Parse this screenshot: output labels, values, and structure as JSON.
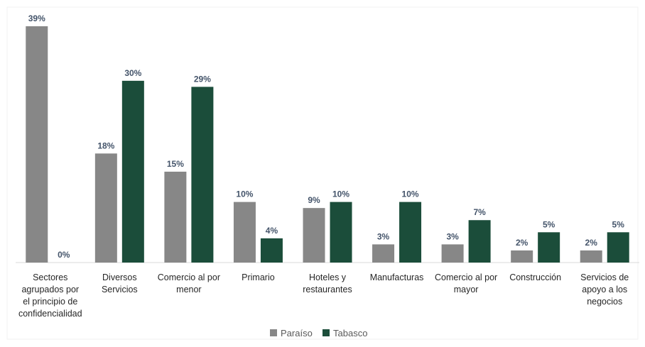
{
  "chart_data": {
    "type": "bar",
    "title": "",
    "xlabel": "",
    "ylabel": "",
    "ylim": [
      0,
      39
    ],
    "grid": false,
    "legend_position": "bottom-center",
    "categories": [
      [
        "Sectores",
        "agrupados por",
        "el principio de",
        "confidencialidad"
      ],
      [
        "Diversos",
        "Servicios"
      ],
      [
        "Comercio al por",
        "menor"
      ],
      [
        "Primario"
      ],
      [
        "Hoteles y",
        "restaurantes"
      ],
      [
        "Manufacturas"
      ],
      [
        "Comercio al por",
        "mayor"
      ],
      [
        "Construcción"
      ],
      [
        "Servicios de",
        "apoyo a los",
        "negocios"
      ]
    ],
    "series": [
      {
        "name": "Paraíso",
        "color": "#878787",
        "values": [
          39,
          18,
          15,
          10,
          9,
          3,
          3,
          2,
          2
        ],
        "labels": [
          "39%",
          "18%",
          "15%",
          "10%",
          "9%",
          "3%",
          "3%",
          "2%",
          "2%"
        ]
      },
      {
        "name": "Tabasco",
        "color": "#1b4d3a",
        "values": [
          0,
          30,
          29,
          4,
          10,
          10,
          7,
          5,
          5
        ],
        "labels": [
          "0%",
          "30%",
          "29%",
          "4%",
          "10%",
          "10%",
          "7%",
          "5%",
          "5%"
        ]
      }
    ],
    "label_color": "#44546a",
    "axis_color": "#d9d9d9"
  }
}
